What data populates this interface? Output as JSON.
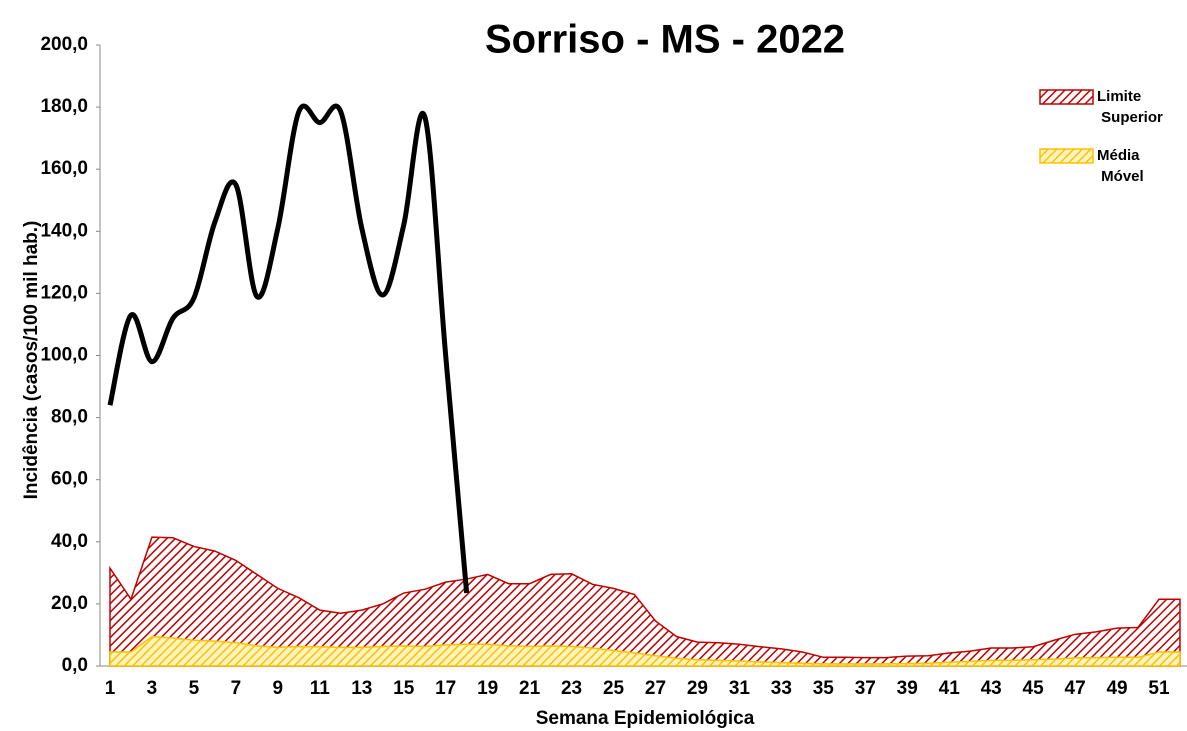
{
  "chart_data": {
    "type": "area",
    "title": "Sorriso - MS - 2022",
    "x_label": "Semana Epidemiológica",
    "y_label": "Incidência (casos/100 mil hab.)",
    "categories": [
      1,
      null,
      3,
      null,
      5,
      null,
      7,
      null,
      9,
      null,
      11,
      null,
      13,
      null,
      15,
      null,
      17,
      null,
      19,
      null,
      21,
      null,
      23,
      null,
      25,
      null,
      27,
      null,
      29,
      null,
      31,
      null,
      33,
      null,
      35,
      null,
      37,
      null,
      39,
      null,
      41,
      null,
      43,
      null,
      45,
      null,
      47,
      null,
      49,
      null,
      51,
      null
    ],
    "ylim": [
      0,
      200
    ],
    "yticks": [
      {
        "value": 0,
        "label": "0,0"
      },
      {
        "value": 20,
        "label": "20,0"
      },
      {
        "value": 40,
        "label": "40,0"
      },
      {
        "value": 60,
        "label": "60,0"
      },
      {
        "value": 80,
        "label": "80,0"
      },
      {
        "value": 100,
        "label": "100,0"
      },
      {
        "value": 120,
        "label": "120,0"
      },
      {
        "value": 140,
        "label": "140,0"
      },
      {
        "value": 160,
        "label": "160,0"
      },
      {
        "value": 180,
        "label": "180,0"
      },
      {
        "value": 200,
        "label": "200,0"
      }
    ],
    "legend": "top-right",
    "series": [
      {
        "name": "Limite Superior",
        "color": "#c00000",
        "kind": "area",
        "values": [
          31.5,
          21.5,
          41.5,
          41.3,
          38.5,
          37,
          34,
          29.5,
          25,
          22,
          18,
          17,
          18,
          20,
          23.5,
          24.7,
          27,
          28,
          29.5,
          26.5,
          26.5,
          29.5,
          29.7,
          26.3,
          25,
          23,
          14.5,
          9.5,
          7.7,
          7.5,
          7,
          6.2,
          5.5,
          4.5,
          2.8,
          2.8,
          2.7,
          2.7,
          3.2,
          3.3,
          4.2,
          4.8,
          5.8,
          5.8,
          6.2,
          8.3,
          10.2,
          11,
          12.2,
          12.4,
          21.5,
          21.5
        ]
      },
      {
        "name": "Média Móvel",
        "color": "#ffc000",
        "kind": "area",
        "values": [
          4.5,
          4.5,
          9.5,
          9,
          8.3,
          8,
          7.5,
          6.5,
          6,
          6.3,
          6.2,
          6,
          6,
          6.3,
          6.5,
          6.3,
          6.8,
          7,
          7,
          6.5,
          6.3,
          6.5,
          6.3,
          5.8,
          5,
          4.2,
          3.3,
          2.5,
          2,
          1.8,
          1.6,
          1.3,
          1.1,
          0.9,
          0.7,
          0.7,
          0.7,
          0.7,
          0.8,
          0.9,
          1.2,
          1.5,
          1.8,
          1.8,
          2,
          2.2,
          2.6,
          2.7,
          2.8,
          2.8,
          4.5,
          4.5
        ]
      },
      {
        "color": "#000000",
        "kind": "line",
        "values": [
          84,
          113,
          98,
          112,
          118.5,
          143,
          155,
          119,
          141,
          178.5,
          175,
          178.5,
          141,
          119.5,
          142,
          177,
          100,
          23.5,
          null,
          null,
          null,
          null,
          null,
          null,
          null,
          null,
          null,
          null,
          null,
          null,
          null,
          null,
          null,
          null,
          null,
          null,
          null,
          null,
          null,
          null,
          null,
          null,
          null,
          null,
          null,
          null,
          null,
          null,
          null,
          null,
          null,
          null
        ]
      }
    ]
  }
}
